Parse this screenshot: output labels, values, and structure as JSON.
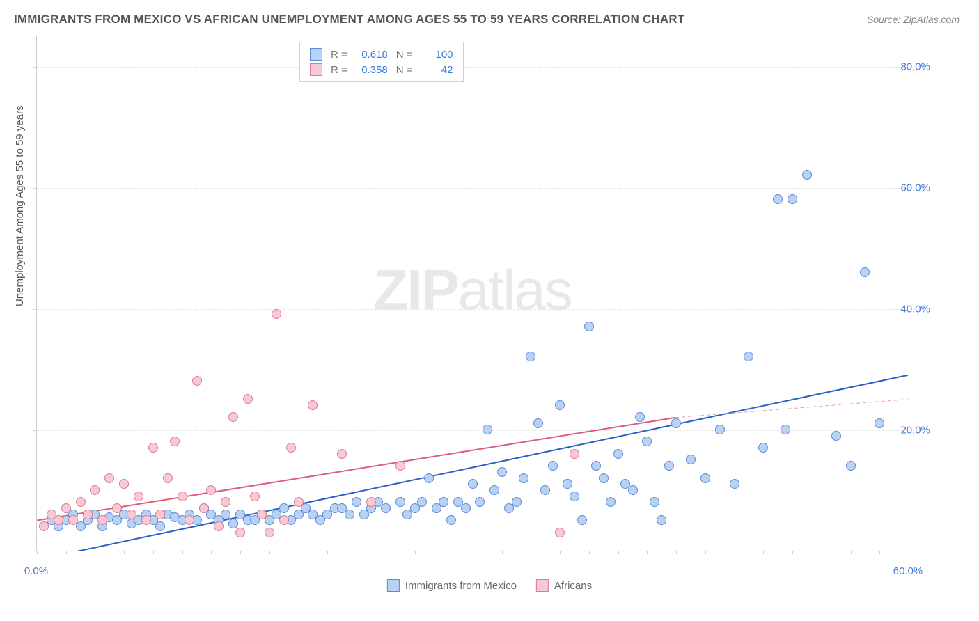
{
  "title": "IMMIGRANTS FROM MEXICO VS AFRICAN UNEMPLOYMENT AMONG AGES 55 TO 59 YEARS CORRELATION CHART",
  "source": "Source: ZipAtlas.com",
  "ylabel": "Unemployment Among Ages 55 to 59 years",
  "watermark_a": "ZIP",
  "watermark_b": "atlas",
  "legend_top": {
    "rows": [
      {
        "swatch_fill": "#b9d1f2",
        "swatch_border": "#5a8cd8",
        "r_label": "R =",
        "r_val": "0.618",
        "n_label": "N =",
        "n_val": "100"
      },
      {
        "swatch_fill": "#f6c9d4",
        "swatch_border": "#e07a92",
        "r_label": "R =",
        "r_val": "0.358",
        "n_label": "N =",
        "n_val": "42"
      }
    ]
  },
  "legend_bottom": {
    "items": [
      {
        "swatch_fill": "#b9d1f2",
        "swatch_border": "#5a8cd8",
        "label": "Immigrants from Mexico"
      },
      {
        "swatch_fill": "#f6c9d4",
        "swatch_border": "#e07a92",
        "label": "Africans"
      }
    ]
  },
  "chart": {
    "type": "scatter",
    "xlim": [
      0,
      60
    ],
    "ylim": [
      0,
      85
    ],
    "x_ticks_minor_step": 2,
    "y_ticks": [
      20,
      40,
      60,
      80
    ],
    "y_tick_labels": [
      "20.0%",
      "40.0%",
      "60.0%",
      "80.0%"
    ],
    "x_tick_labels": [
      {
        "x": 0,
        "label": "0.0%"
      },
      {
        "x": 60,
        "label": "60.0%"
      }
    ],
    "background_color": "#ffffff",
    "grid_color": "#e5e5e5",
    "marker_radius": 7,
    "series": [
      {
        "name": "Immigrants from Mexico",
        "fill": "#b9d1f2",
        "border": "#5a8cd8",
        "trend": {
          "color": "#2a5fc7",
          "width": 2,
          "x1": 1,
          "y1": -1,
          "x2": 60,
          "y2": 29
        },
        "points": [
          [
            1,
            5
          ],
          [
            1.5,
            4
          ],
          [
            2,
            5
          ],
          [
            2.5,
            6
          ],
          [
            3,
            4
          ],
          [
            3.5,
            5
          ],
          [
            4,
            6
          ],
          [
            4.5,
            4
          ],
          [
            5,
            5.5
          ],
          [
            5.5,
            5
          ],
          [
            6,
            6
          ],
          [
            6.5,
            4.5
          ],
          [
            7,
            5
          ],
          [
            7.5,
            6
          ],
          [
            8,
            5
          ],
          [
            8.5,
            4
          ],
          [
            9,
            6
          ],
          [
            9.5,
            5.5
          ],
          [
            10,
            5
          ],
          [
            10.5,
            6
          ],
          [
            11,
            5
          ],
          [
            11.5,
            7
          ],
          [
            12,
            6
          ],
          [
            12.5,
            5
          ],
          [
            13,
            6
          ],
          [
            13.5,
            4.5
          ],
          [
            14,
            6
          ],
          [
            14.5,
            5
          ],
          [
            15,
            5
          ],
          [
            15.5,
            6
          ],
          [
            16,
            5
          ],
          [
            16.5,
            6
          ],
          [
            17,
            7
          ],
          [
            17.5,
            5
          ],
          [
            18,
            6
          ],
          [
            18.5,
            7
          ],
          [
            19,
            6
          ],
          [
            19.5,
            5
          ],
          [
            20,
            6
          ],
          [
            20.5,
            7
          ],
          [
            21,
            7
          ],
          [
            21.5,
            6
          ],
          [
            22,
            8
          ],
          [
            22.5,
            6
          ],
          [
            23,
            7
          ],
          [
            23.5,
            8
          ],
          [
            24,
            7
          ],
          [
            25,
            8
          ],
          [
            25.5,
            6
          ],
          [
            26,
            7
          ],
          [
            26.5,
            8
          ],
          [
            27,
            12
          ],
          [
            27.5,
            7
          ],
          [
            28,
            8
          ],
          [
            28.5,
            5
          ],
          [
            29,
            8
          ],
          [
            29.5,
            7
          ],
          [
            30,
            11
          ],
          [
            30.5,
            8
          ],
          [
            31,
            20
          ],
          [
            31.5,
            10
          ],
          [
            32,
            13
          ],
          [
            32.5,
            7
          ],
          [
            33,
            8
          ],
          [
            33.5,
            12
          ],
          [
            34,
            32
          ],
          [
            34.5,
            21
          ],
          [
            35,
            10
          ],
          [
            35.5,
            14
          ],
          [
            36,
            24
          ],
          [
            36.5,
            11
          ],
          [
            37,
            9
          ],
          [
            37.5,
            5
          ],
          [
            38,
            37
          ],
          [
            38.5,
            14
          ],
          [
            39,
            12
          ],
          [
            39.5,
            8
          ],
          [
            40,
            16
          ],
          [
            40.5,
            11
          ],
          [
            41,
            10
          ],
          [
            41.5,
            22
          ],
          [
            42,
            18
          ],
          [
            42.5,
            8
          ],
          [
            43,
            5
          ],
          [
            43.5,
            14
          ],
          [
            44,
            21
          ],
          [
            45,
            15
          ],
          [
            46,
            12
          ],
          [
            47,
            20
          ],
          [
            48,
            11
          ],
          [
            49,
            32
          ],
          [
            50,
            17
          ],
          [
            51,
            58
          ],
          [
            51.5,
            20
          ],
          [
            52,
            58
          ],
          [
            53,
            62
          ],
          [
            55,
            19
          ],
          [
            56,
            14
          ],
          [
            57,
            46
          ],
          [
            58,
            21
          ]
        ]
      },
      {
        "name": "Africans",
        "fill": "#f6c9d4",
        "border": "#e07a92",
        "trend_solid": {
          "color": "#e05a7a",
          "width": 2,
          "x1": 0,
          "y1": 5,
          "x2": 44,
          "y2": 22
        },
        "trend_dash": {
          "color": "#e8a0b0",
          "width": 1,
          "x1": 44,
          "y1": 22,
          "x2": 60,
          "y2": 25
        },
        "points": [
          [
            0.5,
            4
          ],
          [
            1,
            6
          ],
          [
            1.5,
            5
          ],
          [
            2,
            7
          ],
          [
            2.5,
            5
          ],
          [
            3,
            8
          ],
          [
            3.5,
            6
          ],
          [
            4,
            10
          ],
          [
            4.5,
            5
          ],
          [
            5,
            12
          ],
          [
            5.5,
            7
          ],
          [
            6,
            11
          ],
          [
            6.5,
            6
          ],
          [
            7,
            9
          ],
          [
            7.5,
            5
          ],
          [
            8,
            17
          ],
          [
            8.5,
            6
          ],
          [
            9,
            12
          ],
          [
            9.5,
            18
          ],
          [
            10,
            9
          ],
          [
            10.5,
            5
          ],
          [
            11,
            28
          ],
          [
            11.5,
            7
          ],
          [
            12,
            10
          ],
          [
            12.5,
            4
          ],
          [
            13,
            8
          ],
          [
            13.5,
            22
          ],
          [
            14,
            3
          ],
          [
            14.5,
            25
          ],
          [
            15,
            9
          ],
          [
            15.5,
            6
          ],
          [
            16,
            3
          ],
          [
            16.5,
            39
          ],
          [
            17,
            5
          ],
          [
            17.5,
            17
          ],
          [
            18,
            8
          ],
          [
            19,
            24
          ],
          [
            21,
            16
          ],
          [
            23,
            8
          ],
          [
            25,
            14
          ],
          [
            36,
            3
          ],
          [
            37,
            16
          ]
        ]
      }
    ]
  }
}
